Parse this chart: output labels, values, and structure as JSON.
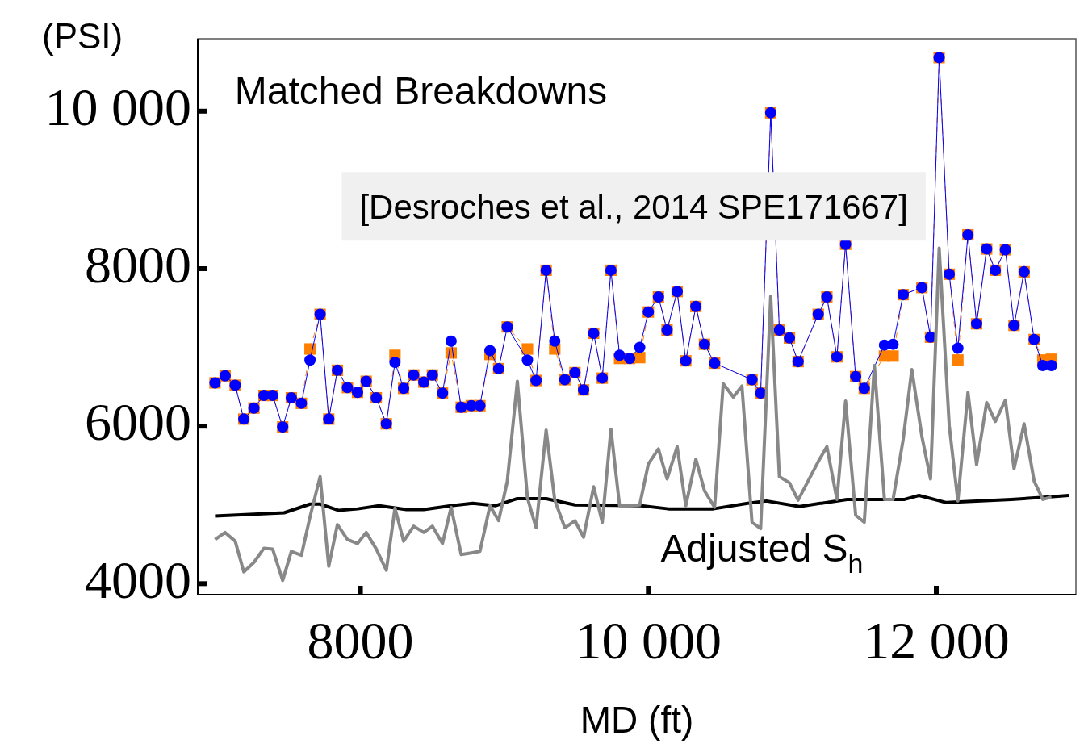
{
  "chart_data": {
    "type": "line",
    "xlabel": "MD (ft)",
    "ylabel": "(PSI)",
    "annotations": [
      "Matched Breakdowns",
      "[Desroches et al., 2014 SPE171667]"
    ],
    "x": [
      6990,
      7060,
      7130,
      7190,
      7260,
      7330,
      7390,
      7460,
      7520,
      7590,
      7650,
      7720,
      7780,
      7840,
      7910,
      7980,
      8040,
      8110,
      8180,
      8240,
      8300,
      8370,
      8440,
      8500,
      8570,
      8630,
      8700,
      8770,
      8830,
      8900,
      8960,
      9020,
      9090,
      9160,
      9220,
      9290,
      9350,
      9420,
      9490,
      9550,
      9620,
      9680,
      9740,
      9800,
      9870,
      9940,
      10000,
      10070,
      10130,
      10200,
      10260,
      10330,
      10390,
      10460,
      10520,
      10590,
      10650,
      10720,
      10780,
      10850,
      10910,
      10980,
      11040,
      11180,
      11240,
      11310,
      11370,
      11440,
      11500,
      11570,
      11640,
      11700,
      11770,
      11830,
      11900,
      11960,
      12020,
      12090,
      12150,
      12220,
      12280,
      12350,
      12410,
      12480,
      12540,
      12610,
      12680,
      12740,
      12800
    ],
    "series": [
      {
        "color": "#888888",
        "marker": "none",
        "line_style": "solid",
        "values": [
          4560,
          4650,
          4540,
          4150,
          4270,
          4450,
          4440,
          4040,
          4410,
          4360,
          4850,
          5360,
          4220,
          4750,
          4560,
          4510,
          4650,
          4440,
          4170,
          4960,
          4540,
          4730,
          4650,
          4730,
          4510,
          4970,
          4370,
          4390,
          4410,
          4990,
          4800,
          5300,
          6570,
          5090,
          4710,
          5950,
          5060,
          4710,
          4800,
          4590,
          5230,
          4780,
          5960,
          4990,
          4990,
          5000,
          5520,
          5710,
          5330,
          5740,
          4990,
          5580,
          5180,
          4970,
          6540,
          6370,
          6510,
          4780,
          4700,
          7650,
          5360,
          5280,
          5060,
          5550,
          5740,
          5070,
          6320,
          4870,
          4780,
          6770,
          5070,
          5070,
          5830,
          6720,
          5870,
          5330,
          8260,
          6010,
          5050,
          6430,
          5510,
          6300,
          6060,
          6330,
          5460,
          6030,
          5300,
          5070,
          5100
        ]
      },
      {
        "name": "Adjusted S$_{h}$",
        "color": "#000000",
        "marker": "none",
        "line_style": "solid",
        "x": [
          6990,
          7470,
          7650,
          7720,
          7850,
          7980,
          8130,
          8320,
          8440,
          8630,
          8780,
          8940,
          9090,
          9290,
          9490,
          9950,
          10140,
          10450,
          10690,
          10820,
          11050,
          11380,
          11780,
          11880,
          12070,
          12520,
          12770,
          12920
        ],
        "values": [
          4860,
          4900,
          5010,
          5010,
          4930,
          4950,
          4990,
          4940,
          4940,
          4990,
          5020,
          4990,
          5080,
          5080,
          5000,
          4990,
          4950,
          4950,
          5020,
          5050,
          4980,
          5070,
          5070,
          5120,
          5030,
          5070,
          5100,
          5120
        ]
      },
      {
        "color": "#0000ff",
        "marker": "circle",
        "line_style": "solid",
        "values": [
          6550,
          6640,
          6520,
          6090,
          6230,
          6390,
          6390,
          5990,
          6360,
          6290,
          6840,
          7420,
          6090,
          6710,
          6490,
          6430,
          6570,
          6360,
          6030,
          6810,
          6480,
          6650,
          6560,
          6650,
          6420,
          7080,
          6240,
          6260,
          6260,
          6960,
          6730,
          7260,
          null,
          6840,
          6580,
          7980,
          7080,
          6590,
          6680,
          6460,
          7180,
          6610,
          7980,
          6900,
          6860,
          7000,
          7450,
          7640,
          7220,
          7710,
          6830,
          7520,
          7040,
          6800,
          null,
          null,
          null,
          6590,
          6420,
          9980,
          7220,
          7120,
          6820,
          7420,
          7640,
          6880,
          8310,
          6630,
          6480,
          null,
          7030,
          7040,
          7670,
          null,
          7760,
          7130,
          10680,
          7930,
          6990,
          8430,
          7300,
          8250,
          7980,
          8240,
          7280,
          7960,
          7100,
          6770,
          6770
        ]
      },
      {
        "color": "#ff8000",
        "marker": "square",
        "line_style": "dashed",
        "values": [
          6550,
          6640,
          6520,
          6090,
          6230,
          6390,
          6390,
          5990,
          6360,
          6290,
          6980,
          7420,
          6090,
          6710,
          6490,
          6430,
          6570,
          6360,
          6030,
          6900,
          6480,
          6650,
          6560,
          6650,
          6420,
          6930,
          6240,
          6260,
          6260,
          6910,
          6730,
          7260,
          null,
          6980,
          6580,
          7980,
          6980,
          6590,
          6680,
          6460,
          7180,
          6610,
          7980,
          6860,
          6860,
          6870,
          7450,
          7640,
          7220,
          7710,
          6830,
          7520,
          7040,
          6800,
          null,
          null,
          null,
          6590,
          6420,
          9980,
          7220,
          7120,
          6820,
          7420,
          7640,
          6880,
          8310,
          6630,
          6480,
          null,
          6890,
          6890,
          7670,
          null,
          7760,
          7130,
          10680,
          7930,
          6840,
          8430,
          7300,
          8250,
          7980,
          8240,
          7280,
          7960,
          7100,
          6840,
          6850
        ]
      }
    ],
    "xlim": [
      6870,
      12970
    ],
    "ylim": [
      3860,
      10920
    ],
    "xticks": [
      8000,
      {
        "value": 10000,
        "label": "10 000"
      },
      {
        "value": 12000,
        "label": "12 000"
      }
    ],
    "yticks": [
      4000,
      6000,
      8000,
      {
        "value": 10000,
        "label": "10 000"
      }
    ],
    "grid": false,
    "legend": false
  }
}
